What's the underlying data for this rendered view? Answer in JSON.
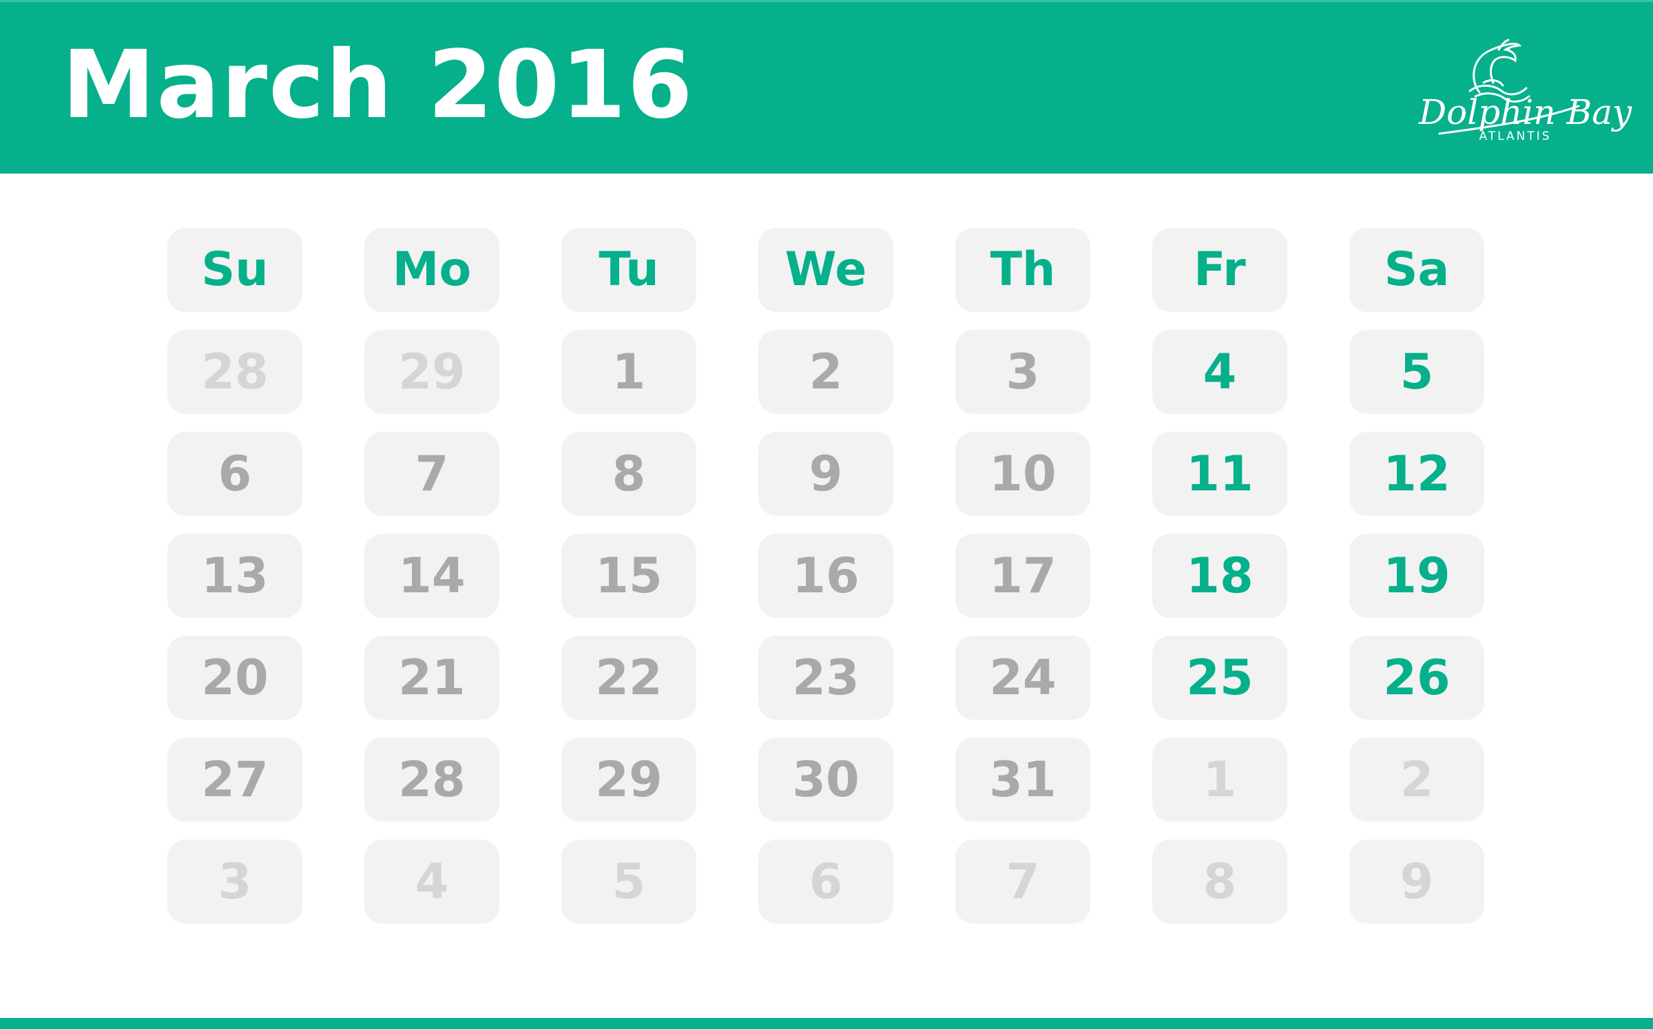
{
  "title": "March 2016",
  "brand": {
    "name": "Dolphin Bay",
    "subtitle": "ATLANTIS",
    "logo_icon": "dolphin-logo-icon"
  },
  "colors": {
    "accent": "#05b08a",
    "weekday_number": "#a7a9ab",
    "outside_month_number": "#d5d5d5",
    "cell_background": "#f2f2f2"
  },
  "weekdays": [
    "Su",
    "Mo",
    "Tu",
    "We",
    "Th",
    "Fr",
    "Sa"
  ],
  "weeks": [
    [
      {
        "day": "28",
        "type": "outside"
      },
      {
        "day": "29",
        "type": "outside"
      },
      {
        "day": "1",
        "type": "normal"
      },
      {
        "day": "2",
        "type": "normal"
      },
      {
        "day": "3",
        "type": "normal"
      },
      {
        "day": "4",
        "type": "weekend"
      },
      {
        "day": "5",
        "type": "weekend"
      }
    ],
    [
      {
        "day": "6",
        "type": "normal"
      },
      {
        "day": "7",
        "type": "normal"
      },
      {
        "day": "8",
        "type": "normal"
      },
      {
        "day": "9",
        "type": "normal"
      },
      {
        "day": "10",
        "type": "normal"
      },
      {
        "day": "11",
        "type": "weekend"
      },
      {
        "day": "12",
        "type": "weekend"
      }
    ],
    [
      {
        "day": "13",
        "type": "normal"
      },
      {
        "day": "14",
        "type": "normal"
      },
      {
        "day": "15",
        "type": "normal"
      },
      {
        "day": "16",
        "type": "normal"
      },
      {
        "day": "17",
        "type": "normal"
      },
      {
        "day": "18",
        "type": "weekend"
      },
      {
        "day": "19",
        "type": "weekend"
      }
    ],
    [
      {
        "day": "20",
        "type": "normal"
      },
      {
        "day": "21",
        "type": "normal"
      },
      {
        "day": "22",
        "type": "normal"
      },
      {
        "day": "23",
        "type": "normal"
      },
      {
        "day": "24",
        "type": "normal"
      },
      {
        "day": "25",
        "type": "weekend"
      },
      {
        "day": "26",
        "type": "weekend"
      }
    ],
    [
      {
        "day": "27",
        "type": "normal"
      },
      {
        "day": "28",
        "type": "normal"
      },
      {
        "day": "29",
        "type": "normal"
      },
      {
        "day": "30",
        "type": "normal"
      },
      {
        "day": "31",
        "type": "normal"
      },
      {
        "day": "1",
        "type": "outside"
      },
      {
        "day": "2",
        "type": "outside"
      }
    ],
    [
      {
        "day": "3",
        "type": "outside"
      },
      {
        "day": "4",
        "type": "outside"
      },
      {
        "day": "5",
        "type": "outside"
      },
      {
        "day": "6",
        "type": "outside"
      },
      {
        "day": "7",
        "type": "outside"
      },
      {
        "day": "8",
        "type": "outside"
      },
      {
        "day": "9",
        "type": "outside"
      }
    ]
  ]
}
